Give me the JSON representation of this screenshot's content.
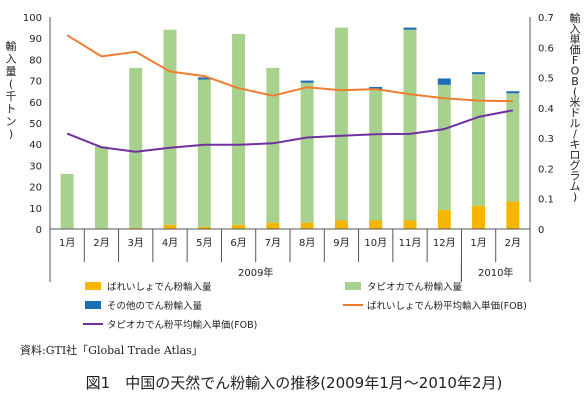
{
  "chart_data": {
    "type": "bar",
    "categories": [
      "1月",
      "2月",
      "3月",
      "4月",
      "5月",
      "6月",
      "7月",
      "8月",
      "9月",
      "10月",
      "11月",
      "12月",
      "1月",
      "2月"
    ],
    "year_groups": [
      {
        "label": "2009年",
        "from": 0,
        "to": 11
      },
      {
        "label": "2010年",
        "from": 12,
        "to": 13
      }
    ],
    "ylabel": "輸入量(千トン)",
    "y2label": "輸入単価FOB(米ドル/キログラム)",
    "ylim": [
      0,
      100
    ],
    "yticks": [
      0,
      10,
      20,
      30,
      40,
      50,
      60,
      70,
      80,
      90,
      100
    ],
    "y2lim": [
      0,
      0.7
    ],
    "y2ticks": [
      0,
      0.1,
      0.2,
      0.3,
      0.4,
      0.5,
      0.6,
      0.7
    ],
    "series": [
      {
        "name": "ばれいしょでん粉輸入量",
        "kind": "bar",
        "color": "#f5b500",
        "values": [
          0.3,
          0.3,
          0.5,
          2,
          1,
          2,
          3,
          3,
          4,
          4,
          4,
          9,
          11,
          13
        ]
      },
      {
        "name": "タピオカでん粉輸入量",
        "kind": "bar",
        "color": "#a9d18e",
        "values": [
          25.7,
          38.7,
          75.5,
          92,
          69.5,
          90,
          73,
          66,
          91,
          62,
          90,
          59,
          62,
          51
        ]
      },
      {
        "name": "その他のでん粉輸入量",
        "kind": "bar",
        "color": "#1f6db5",
        "values": [
          0,
          0,
          0,
          0,
          1,
          0,
          0,
          1,
          0,
          1,
          1,
          3,
          1,
          1
        ]
      },
      {
        "name": "ばれいしょでん粉平均輸入単価(FOB)",
        "kind": "line",
        "color": "#ed7d31",
        "values": [
          0.64,
          0.57,
          0.585,
          0.52,
          0.505,
          0.465,
          0.44,
          0.468,
          0.458,
          0.462,
          0.445,
          0.432,
          0.424,
          0.422
        ]
      },
      {
        "name": "タピオカでん粉平均輸入単価(FOB)",
        "kind": "line",
        "color": "#7030a0",
        "values": [
          0.315,
          0.27,
          0.255,
          0.268,
          0.278,
          0.278,
          0.283,
          0.302,
          0.308,
          0.313,
          0.314,
          0.33,
          0.37,
          0.392
        ]
      }
    ],
    "legend": "bottom",
    "grid": false
  },
  "source": "資料:GTI社「Global Trade Atlas」",
  "caption": "図1　中国の天然でん粉輸入の推移(2009年1月〜2010年2月)"
}
